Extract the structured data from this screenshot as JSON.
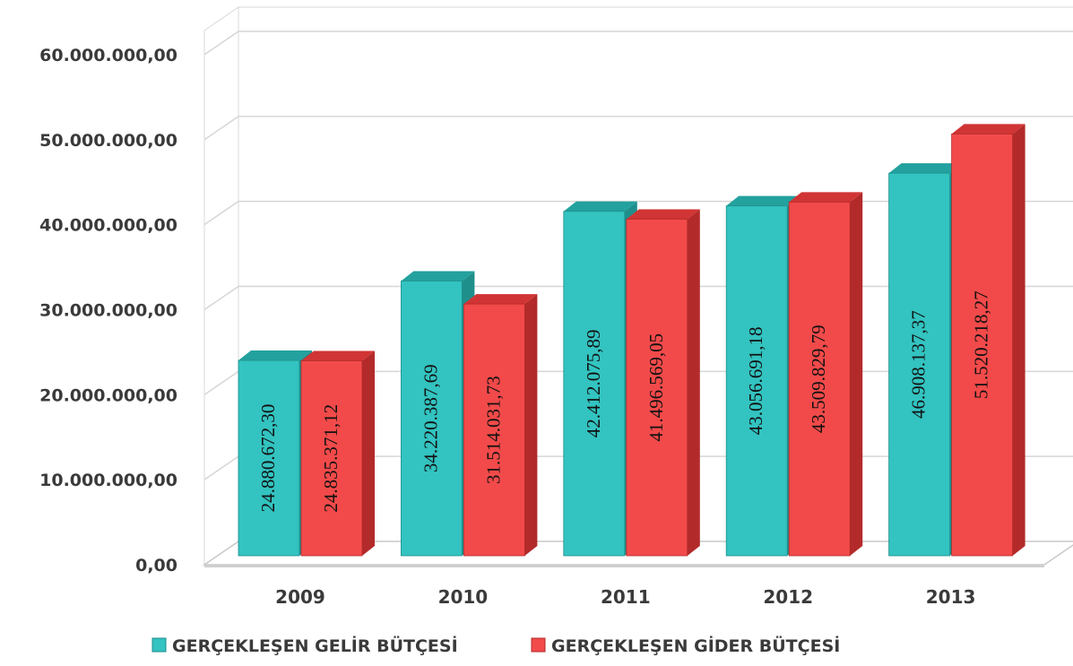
{
  "chart_data": {
    "type": "bar",
    "categories": [
      "2009",
      "2010",
      "2011",
      "2012",
      "2013"
    ],
    "series": [
      {
        "name": "GERÇEKLEŞEN GELİR BÜTÇESİ",
        "values": [
          24880672.3,
          34220387.69,
          42412075.89,
          43056691.18,
          46908137.37
        ],
        "labels": [
          "24.880.672,30",
          "34.220.387,69",
          "42.412.075,89",
          "43.056.691,18",
          "46.908.137,37"
        ],
        "color": "#33c3c0",
        "side_color": "#1f8f8c",
        "top_color": "#23a19e"
      },
      {
        "name": "GERÇEKLEŞEN GİDER BÜTÇESİ",
        "values": [
          24835371.12,
          31514031.73,
          41496569.05,
          43509829.79,
          51520218.27
        ],
        "labels": [
          "24.835.371,12",
          "31.514.031,73",
          "41.496.569,05",
          "43.509.829,79",
          "51.520.218,27"
        ],
        "color": "#f24a4a",
        "side_color": "#b32a2a",
        "top_color": "#d13434"
      }
    ],
    "yticks": [
      {
        "value": 0,
        "label": "0,00"
      },
      {
        "value": 10000000,
        "label": "10.000.000,00"
      },
      {
        "value": 20000000,
        "label": "20.000.000,00"
      },
      {
        "value": 30000000,
        "label": "30.000.000,00"
      },
      {
        "value": 40000000,
        "label": "40.000.000,00"
      },
      {
        "value": 50000000,
        "label": "50.000.000,00"
      },
      {
        "value": 60000000,
        "label": "60.000.000,00"
      }
    ],
    "ylim": [
      0,
      60000000
    ],
    "grid": true,
    "legend_position": "bottom",
    "style": "3d-clustered-column"
  }
}
